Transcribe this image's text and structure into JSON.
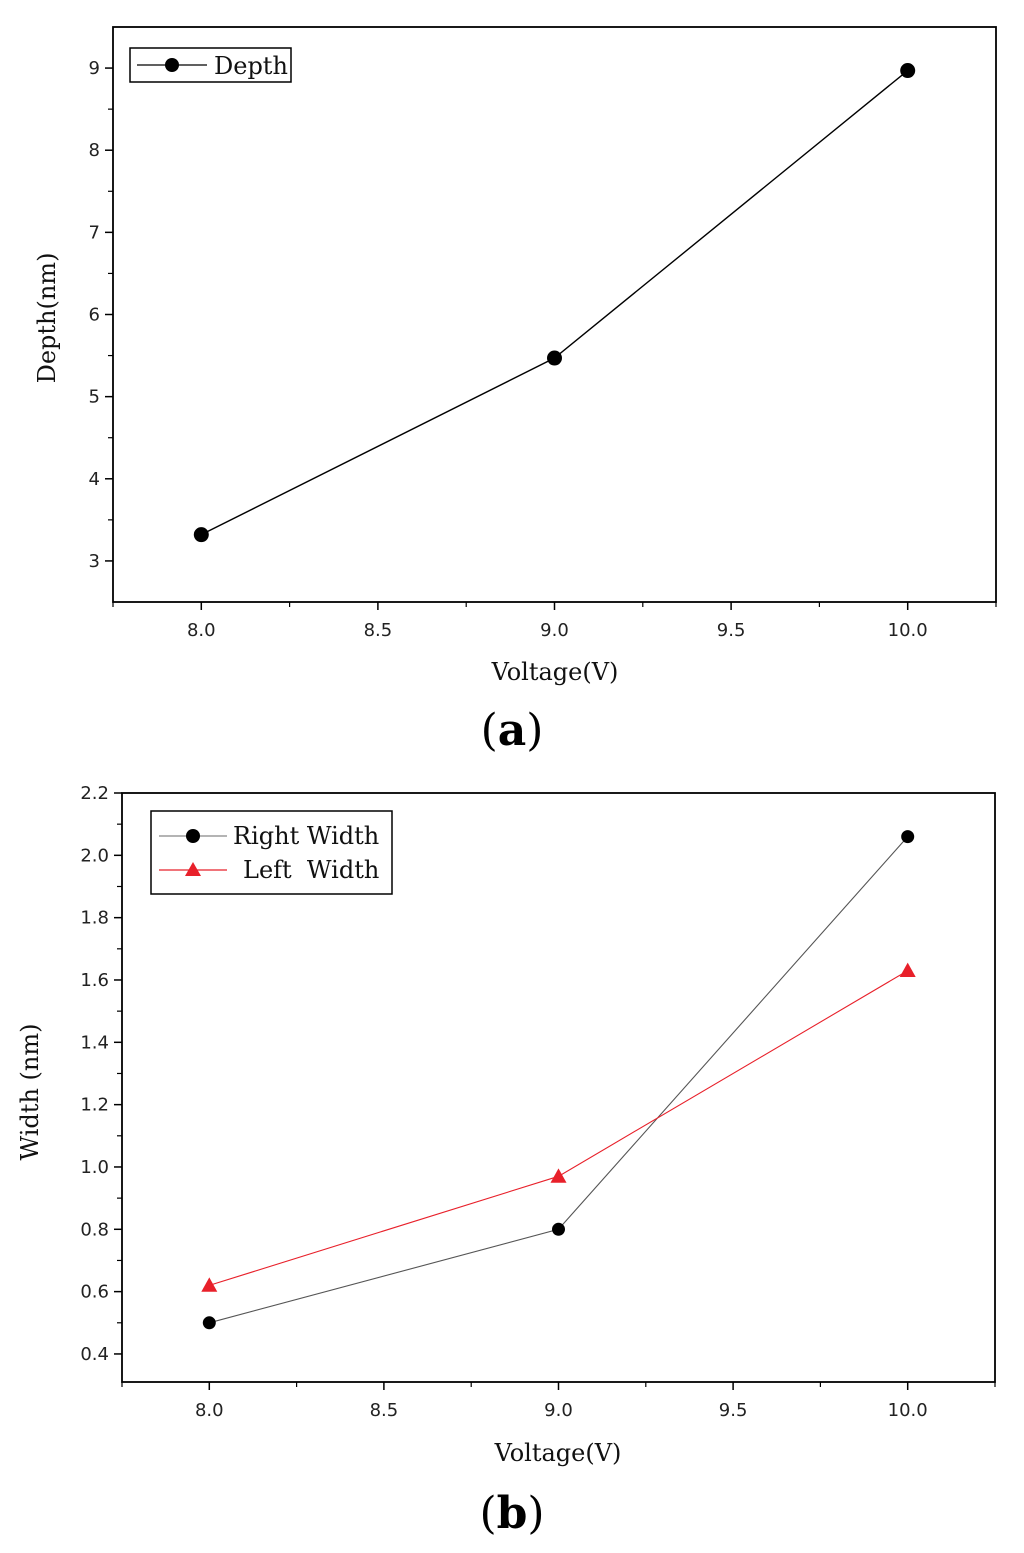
{
  "chart_data": [
    {
      "type": "line",
      "panel_label": "a",
      "title": "",
      "xlabel": "Voltage(V)",
      "ylabel": "Depth(nm)",
      "xlim": [
        7.75,
        10.25
      ],
      "ylim": [
        2.5,
        9.5
      ],
      "xticks": [
        "8.0",
        "8.5",
        "9.0",
        "9.5",
        "10.0"
      ],
      "yticks": [
        "3",
        "4",
        "5",
        "6",
        "7",
        "8",
        "9"
      ],
      "grid": false,
      "legend_position": "top-left",
      "series": [
        {
          "name": "Depth",
          "color": "#000000",
          "marker": "circle",
          "x": [
            8.0,
            9.0,
            10.0
          ],
          "values": [
            3.32,
            5.47,
            8.97
          ]
        }
      ]
    },
    {
      "type": "line",
      "panel_label": "b",
      "title": "",
      "xlabel": "Voltage(V)",
      "ylabel": "Width (nm)",
      "xlim": [
        7.75,
        10.25
      ],
      "ylim": [
        0.31,
        2.2
      ],
      "xticks": [
        "8.0",
        "8.5",
        "9.0",
        "9.5",
        "10.0"
      ],
      "yticks": [
        "0.4",
        "0.6",
        "0.8",
        "1.0",
        "1.2",
        "1.4",
        "1.6",
        "1.8",
        "2.0",
        "2.2"
      ],
      "grid": false,
      "legend_position": "top-left",
      "series": [
        {
          "name": "Right Width",
          "color": "#000000",
          "marker": "circle",
          "x": [
            8.0,
            9.0,
            10.0
          ],
          "values": [
            0.5,
            0.8,
            2.06
          ]
        },
        {
          "name": "Left  Width",
          "color": "#e8202a",
          "marker": "triangle",
          "x": [
            8.0,
            9.0,
            10.0
          ],
          "values": [
            0.62,
            0.97,
            1.63
          ]
        }
      ]
    }
  ]
}
